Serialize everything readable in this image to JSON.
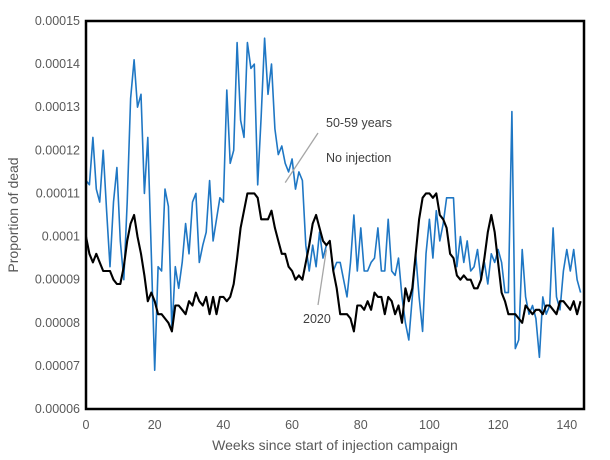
{
  "chart_data": {
    "type": "line",
    "xlabel": "Weeks since start of injection campaign",
    "ylabel": "Proportion of dead",
    "xlim": [
      0,
      145
    ],
    "ylim": [
      6e-05,
      0.00015
    ],
    "x_ticks": [
      "0",
      "20",
      "40",
      "60",
      "80",
      "100",
      "120",
      "140"
    ],
    "y_ticks": [
      "0.00006",
      "0.00007",
      "0.00008",
      "0.00009",
      "0.0001",
      "0.00011",
      "0.00012",
      "0.00013",
      "0.00014",
      "0.00015"
    ],
    "grid": false,
    "series": [
      {
        "color": "#1f77c4",
        "x": [
          0,
          1,
          2,
          3,
          4,
          5,
          6,
          7,
          8,
          9,
          10,
          11,
          12,
          13,
          14,
          15,
          16,
          17,
          18,
          19,
          20,
          21,
          22,
          23,
          24,
          25,
          26,
          27,
          28,
          29,
          30,
          31,
          32,
          33,
          34,
          35,
          36,
          37,
          38,
          39,
          40,
          41,
          42,
          43,
          44,
          45,
          46,
          47,
          48,
          49,
          50,
          51,
          52,
          53,
          54,
          55,
          56,
          57,
          58,
          59,
          60,
          61,
          62,
          63,
          64,
          65,
          66,
          67,
          68,
          69,
          70,
          71,
          72,
          73,
          74,
          75,
          76,
          77,
          78,
          79,
          80,
          81,
          82,
          83,
          84,
          85,
          86,
          87,
          88,
          89,
          90,
          91,
          92,
          93,
          94,
          95,
          96,
          97,
          98,
          99,
          100,
          101,
          102,
          103,
          104,
          105,
          106,
          107,
          108,
          109,
          110,
          111,
          112,
          113,
          114,
          115,
          116,
          117,
          118,
          119,
          120,
          121,
          122,
          123,
          124,
          125,
          126,
          127,
          128,
          129,
          130,
          131,
          132,
          133,
          134,
          135,
          136,
          137,
          138,
          139,
          140,
          141,
          142,
          143,
          144
        ],
        "values": [
          0.000113,
          0.000112,
          0.000123,
          0.000111,
          0.000108,
          0.00012,
          0.000106,
          9.3e-05,
          0.000108,
          0.000116,
          9.9e-05,
          9e-05,
          0.000108,
          0.000132,
          0.000141,
          0.00013,
          0.000133,
          0.00011,
          0.000123,
          9.6e-05,
          6.9e-05,
          9.3e-05,
          9.2e-05,
          0.000111,
          0.000107,
          7.8e-05,
          9.3e-05,
          8.8e-05,
          9.4e-05,
          0.000103,
          9.6e-05,
          0.000108,
          0.00011,
          9.4e-05,
          9.8e-05,
          0.000101,
          0.000113,
          9.9e-05,
          0.000104,
          0.000109,
          0.000108,
          0.000134,
          0.000117,
          0.00012,
          0.000145,
          0.000127,
          0.000123,
          0.000145,
          0.000139,
          0.00014,
          0.000112,
          0.000128,
          0.000146,
          0.000133,
          0.00014,
          0.000125,
          0.000119,
          0.000121,
          0.000117,
          0.000115,
          0.000118,
          0.000111,
          0.000115,
          0.000113,
          9.8e-05,
          9.2e-05,
          9.8e-05,
          9.3e-05,
          0.000101,
          9.5e-05,
          9.8e-05,
          9.9e-05,
          9.2e-05,
          9.4e-05,
          9.4e-05,
          9e-05,
          8.6e-05,
          9.4e-05,
          0.000105,
          9.2e-05,
          0.000102,
          9.2e-05,
          9.2e-05,
          9.4e-05,
          9.5e-05,
          0.000102,
          9.2e-05,
          9.2e-05,
          0.000104,
          9.2e-05,
          9.1e-05,
          9.5e-05,
          8.6e-05,
          8e-05,
          7.6e-05,
          8.6e-05,
          9.6e-05,
          8.6e-05,
          7.8e-05,
          9.6e-05,
          0.000104,
          9.5e-05,
          0.000106,
          9.9e-05,
          0.000103,
          0.000109,
          0.000109,
          0.000109,
          9.3e-05,
          0.0001,
          9.4e-05,
          9.9e-05,
          9.2e-05,
          9.3e-05,
          9.7e-05,
          9e-05,
          9.4e-05,
          8.9e-05,
          9.6e-05,
          9.4e-05,
          9.7e-05,
          9.4e-05,
          8.7e-05,
          8.7e-05,
          0.000129,
          7.4e-05,
          7.6e-05,
          9.7e-05,
          8.6e-05,
          8.2e-05,
          8.4e-05,
          8.1e-05,
          7.2e-05,
          8.6e-05,
          8.2e-05,
          8.4e-05,
          0.000102,
          8.6e-05,
          8.3e-05,
          9.2e-05,
          9.7e-05,
          9.2e-05,
          9.7e-05,
          9e-05,
          8.7e-05
        ]
      },
      {
        "color": "#000000",
        "x": [
          0,
          1,
          2,
          3,
          4,
          5,
          6,
          7,
          8,
          9,
          10,
          11,
          12,
          13,
          14,
          15,
          16,
          17,
          18,
          19,
          20,
          21,
          22,
          23,
          24,
          25,
          26,
          27,
          28,
          29,
          30,
          31,
          32,
          33,
          34,
          35,
          36,
          37,
          38,
          39,
          40,
          41,
          42,
          43,
          44,
          45,
          46,
          47,
          48,
          49,
          50,
          51,
          52,
          53,
          54,
          55,
          56,
          57,
          58,
          59,
          60,
          61,
          62,
          63,
          64,
          65,
          66,
          67,
          68,
          69,
          70,
          71,
          72,
          73,
          74,
          75,
          76,
          77,
          78,
          79,
          80,
          81,
          82,
          83,
          84,
          85,
          86,
          87,
          88,
          89,
          90,
          91,
          92,
          93,
          94,
          95,
          96,
          97,
          98,
          99,
          100,
          101,
          102,
          103,
          104,
          105,
          106,
          107,
          108,
          109,
          110,
          111,
          112,
          113,
          114,
          115,
          116,
          117,
          118,
          119,
          120,
          121,
          122,
          123,
          124,
          125,
          126,
          127,
          128,
          129,
          130,
          131,
          132,
          133,
          134,
          135,
          136,
          137,
          138,
          139,
          140,
          141,
          142,
          143,
          144
        ],
        "values": [
          0.0001,
          9.6e-05,
          9.4e-05,
          9.6e-05,
          9.4e-05,
          9.2e-05,
          9.2e-05,
          9.2e-05,
          9e-05,
          8.9e-05,
          8.9e-05,
          9.3e-05,
          9.9e-05,
          0.000103,
          0.000105,
          0.0001,
          9.6e-05,
          9.1e-05,
          8.5e-05,
          8.7e-05,
          8.5e-05,
          8.2e-05,
          8.2e-05,
          8.1e-05,
          8e-05,
          7.8e-05,
          8.4e-05,
          8.4e-05,
          8.3e-05,
          8.2e-05,
          8.5e-05,
          8.4e-05,
          8.7e-05,
          8.5e-05,
          8.4e-05,
          8.6e-05,
          8.2e-05,
          8.6e-05,
          8.2e-05,
          8.6e-05,
          8.6e-05,
          8.5e-05,
          8.6e-05,
          8.9e-05,
          9.5e-05,
          0.000102,
          0.000106,
          0.00011,
          0.00011,
          0.00011,
          0.000109,
          0.000104,
          0.000104,
          0.000104,
          0.000106,
          0.000102,
          9.9e-05,
          9.6e-05,
          9.6e-05,
          9.3e-05,
          9.2e-05,
          9e-05,
          9.1e-05,
          9e-05,
          9.4e-05,
          9.8e-05,
          0.000103,
          0.000105,
          0.000102,
          9.9e-05,
          9.8e-05,
          9.9e-05,
          9.2e-05,
          8.8e-05,
          8.2e-05,
          8.2e-05,
          8.2e-05,
          8.1e-05,
          7.8e-05,
          8.4e-05,
          8.4e-05,
          8.3e-05,
          8.5e-05,
          8.3e-05,
          8.7e-05,
          8.6e-05,
          8.6e-05,
          8.2e-05,
          8.6e-05,
          8.5e-05,
          8.2e-05,
          8.4e-05,
          8e-05,
          8.8e-05,
          8.5e-05,
          8.8e-05,
          9.6e-05,
          0.000104,
          0.000109,
          0.00011,
          0.00011,
          0.000109,
          0.00011,
          0.000105,
          0.000104,
          0.000102,
          9.6e-05,
          9.5e-05,
          9.1e-05,
          9e-05,
          9.1e-05,
          9e-05,
          9e-05,
          8.8e-05,
          8.8e-05,
          9e-05,
          9.5e-05,
          0.000101,
          0.000105,
          0.000101,
          9.4e-05,
          8.7e-05,
          8.5e-05,
          8.2e-05,
          8.2e-05,
          8.2e-05,
          8.1e-05,
          8e-05,
          8.4e-05,
          8.3e-05,
          8.2e-05,
          8.3e-05,
          8.3e-05,
          8.2e-05,
          8.4e-05,
          8.4e-05,
          8.3e-05,
          8.2e-05,
          8.5e-05,
          8.5e-05,
          8.4e-05,
          8.3e-05,
          8.5e-05,
          8.2e-05,
          8.5e-05
        ]
      }
    ],
    "annotations": [
      {
        "text": "50-59 years",
        "anchor_x": 58,
        "anchor_y": 0.0001125
      },
      {
        "text": "No injection",
        "anchor_x": 58,
        "anchor_y": 0.0001125
      },
      {
        "text": "2020",
        "anchor_x": 70,
        "anchor_y": 9.7e-05
      }
    ]
  }
}
